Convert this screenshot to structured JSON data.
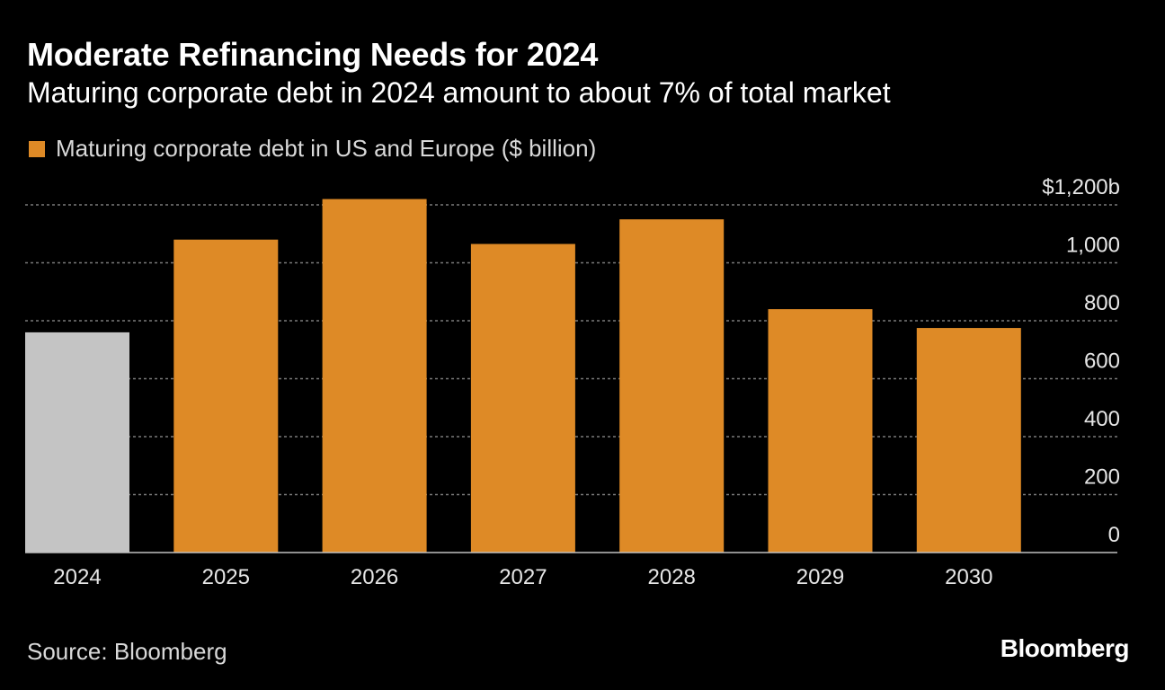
{
  "header": {
    "title": "Moderate Refinancing Needs for 2024",
    "subtitle": "Maturing corporate debt in 2024 amount to about 7% of total market"
  },
  "legend": {
    "label": "Maturing corporate debt in US and Europe ($ billion)",
    "color": "#de8a26"
  },
  "footer": {
    "source": "Source: Bloomberg",
    "brand": "Bloomberg"
  },
  "colors": {
    "highlight_bar": "#de8a26",
    "current_year_bar": "#c4c4c4",
    "gridline": "#7a7a7a",
    "axis_text": "#e6e6e6"
  },
  "chart_data": {
    "type": "bar",
    "categories": [
      "2024",
      "2025",
      "2026",
      "2027",
      "2028",
      "2029",
      "2030"
    ],
    "values": [
      760,
      1080,
      1220,
      1065,
      1150,
      840,
      775
    ],
    "bar_colors": [
      "#c4c4c4",
      "#de8a26",
      "#de8a26",
      "#de8a26",
      "#de8a26",
      "#de8a26",
      "#de8a26"
    ],
    "ylim": [
      0,
      1200
    ],
    "yticks": [
      0,
      200,
      400,
      600,
      800,
      1000,
      1200
    ],
    "ytick_labels": [
      "0",
      "200",
      "400",
      "600",
      "800",
      "1,000",
      "$1,200b"
    ],
    "grid": true,
    "legend_position": "top-left",
    "xlabel": "",
    "ylabel": ""
  }
}
